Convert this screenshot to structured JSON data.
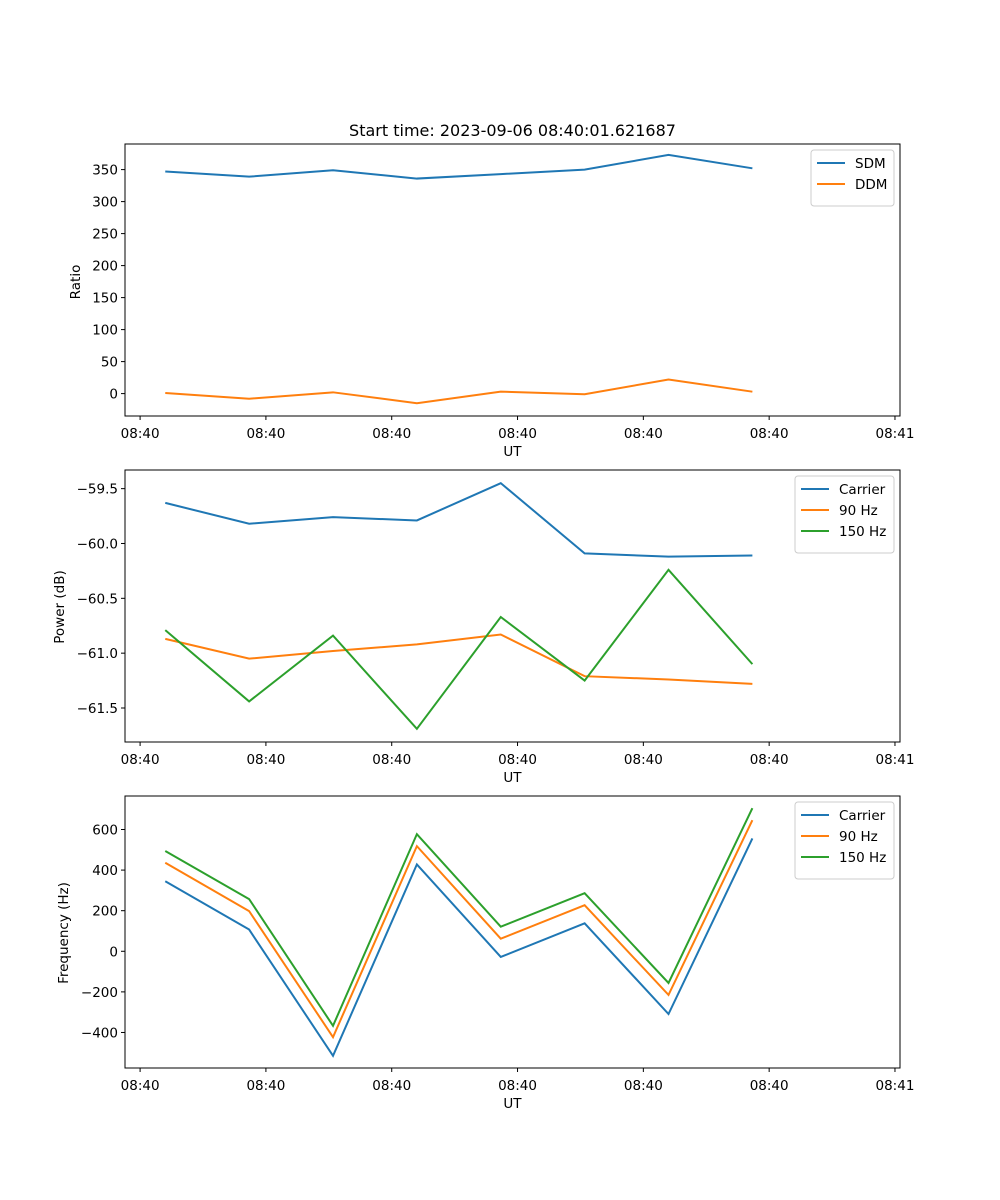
{
  "colors": {
    "blue": "#1f77b4",
    "orange": "#ff7f0e",
    "green": "#2ca02c"
  },
  "chart_data": [
    {
      "type": "line",
      "title": "Start time: 2023-09-06 08:40:01.621687",
      "xlabel": "UT",
      "ylabel": "Ratio",
      "x": [
        0,
        1,
        2,
        3,
        4,
        5,
        6,
        7
      ],
      "xlim": [
        -0.48,
        8.76
      ],
      "x_ticks": [
        -0.3,
        1.2,
        2.7,
        4.2,
        5.7,
        7.2,
        8.7
      ],
      "x_tick_labels": [
        "08:40",
        "08:40",
        "08:40",
        "08:40",
        "08:40",
        "08:40",
        "08:41"
      ],
      "ylim": [
        -35,
        390
      ],
      "y_ticks": [
        0,
        50,
        100,
        150,
        200,
        250,
        300,
        350
      ],
      "y_tick_labels": [
        "0",
        "50",
        "100",
        "150",
        "200",
        "250",
        "300",
        "350"
      ],
      "legend_position": "top-right",
      "series": [
        {
          "name": "SDM",
          "color": "#1f77b4",
          "values": [
            347,
            339,
            349,
            336,
            343,
            350,
            373,
            352
          ]
        },
        {
          "name": "DDM",
          "color": "#ff7f0e",
          "values": [
            1,
            -8,
            2,
            -15,
            3,
            -1,
            22,
            3
          ]
        }
      ]
    },
    {
      "type": "line",
      "title": "",
      "xlabel": "UT",
      "ylabel": "Power (dB)",
      "x": [
        0,
        1,
        2,
        3,
        4,
        5,
        6,
        7
      ],
      "xlim": [
        -0.48,
        8.76
      ],
      "x_ticks": [
        -0.3,
        1.2,
        2.7,
        4.2,
        5.7,
        7.2,
        8.7
      ],
      "x_tick_labels": [
        "08:40",
        "08:40",
        "08:40",
        "08:40",
        "08:40",
        "08:40",
        "08:41"
      ],
      "ylim": [
        -61.81,
        -59.33
      ],
      "y_ticks": [
        -61.5,
        -61.0,
        -60.5,
        -60.0,
        -59.5
      ],
      "y_tick_labels": [
        "−61.5",
        "−61.0",
        "−60.5",
        "−60.0",
        "−59.5"
      ],
      "legend_position": "top-right",
      "series": [
        {
          "name": "Carrier",
          "color": "#1f77b4",
          "values": [
            -59.63,
            -59.82,
            -59.76,
            -59.79,
            -59.45,
            -60.09,
            -60.12,
            -60.11
          ]
        },
        {
          "name": "90 Hz",
          "color": "#ff7f0e",
          "values": [
            -60.87,
            -61.05,
            -60.98,
            -60.92,
            -60.83,
            -61.21,
            -61.24,
            -61.28
          ]
        },
        {
          "name": "150 Hz",
          "color": "#2ca02c",
          "values": [
            -60.79,
            -61.44,
            -60.84,
            -61.69,
            -60.67,
            -61.25,
            -60.24,
            -61.1
          ]
        }
      ]
    },
    {
      "type": "line",
      "title": "",
      "xlabel": "UT",
      "ylabel": "Frequency (Hz)",
      "x": [
        0,
        1,
        2,
        3,
        4,
        5,
        6,
        7
      ],
      "xlim": [
        -0.48,
        8.76
      ],
      "x_ticks": [
        -0.3,
        1.2,
        2.7,
        4.2,
        5.7,
        7.2,
        8.7
      ],
      "x_tick_labels": [
        "08:40",
        "08:40",
        "08:40",
        "08:40",
        "08:40",
        "08:40",
        "08:41"
      ],
      "ylim": [
        -575,
        765
      ],
      "y_ticks": [
        -400,
        -200,
        0,
        200,
        400,
        600
      ],
      "y_tick_labels": [
        "−400",
        "−200",
        "0",
        "200",
        "400",
        "600"
      ],
      "legend_position": "top-right",
      "series": [
        {
          "name": "Carrier",
          "color": "#1f77b4",
          "values": [
            345,
            107,
            -515,
            428,
            -28,
            138,
            -309,
            556
          ]
        },
        {
          "name": "90 Hz",
          "color": "#ff7f0e",
          "values": [
            436,
            198,
            -423,
            518,
            62,
            227,
            -215,
            646
          ]
        },
        {
          "name": "150 Hz",
          "color": "#2ca02c",
          "values": [
            494,
            257,
            -367,
            577,
            121,
            286,
            -156,
            705
          ]
        }
      ]
    }
  ]
}
